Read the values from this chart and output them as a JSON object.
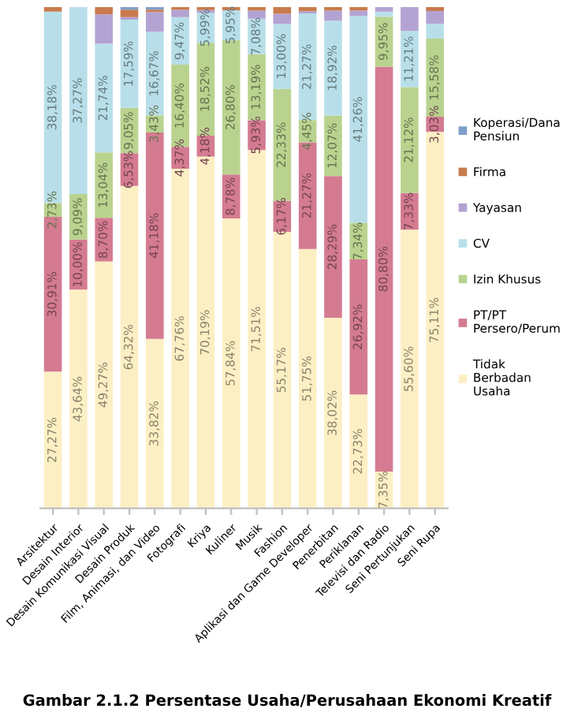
{
  "chart_data": {
    "type": "bar",
    "stacked": true,
    "legend": "right",
    "tick_labels": "x",
    "grid": false,
    "annotations": [
      "Gambar 2.1.2 Persentase Usaha/Perusahaan Ekonomi Kreatif"
    ],
    "categories": [
      "Arsitektur",
      "Desain Interior",
      "Desain Komunikasi Visual",
      "Desain Produk",
      "Film, Animasi, dan Video",
      "Fotografi",
      "Kriya",
      "Kuliner",
      "Musik",
      "Fashion",
      "Aplikasi dan Game Developer",
      "Penerbitan",
      "Periklanan",
      "Televisi dan Radio",
      "Seni Pertunjukan",
      "Seni Rupa"
    ],
    "ylim": [
      0,
      100
    ],
    "series": [
      {
        "name": "Tidak Berbadan Usaha",
        "color": "#fdefc4",
        "values": [
          27.27,
          43.64,
          49.27,
          64.32,
          33.82,
          67.76,
          70.19,
          57.84,
          71.51,
          55.17,
          51.75,
          38.02,
          22.73,
          7.35,
          55.6,
          75.11
        ],
        "value_labels": [
          "27,27%",
          "43,64%",
          "49,27%",
          "64,32%",
          "33,82%",
          "67,76%",
          "70,19%",
          "57,84%",
          "71,51%",
          "55,17%",
          "51,75%",
          "38,02%",
          "22,73%",
          "7,35%",
          "55,60%",
          "75,11%"
        ]
      },
      {
        "name": "PT/PT Persero/Perum",
        "color": "#d47b91",
        "values": [
          30.91,
          10.0,
          8.7,
          6.53,
          41.18,
          4.37,
          4.18,
          8.78,
          5.93,
          6.17,
          21.27,
          28.29,
          26.92,
          80.8,
          7.33,
          3.03
        ],
        "value_labels": [
          "30,91%",
          "10,00%",
          "8,70%",
          "6,53%",
          "41,18%",
          "4,37%",
          "4,18%",
          "8,78%",
          "5,93%",
          "6,17%",
          "21,27%",
          "28,29%",
          "26,92%",
          "80,80%",
          "7,33%",
          "3,03%"
        ]
      },
      {
        "name": "Izin Khusus",
        "color": "#b9d38f",
        "values": [
          2.73,
          9.09,
          13.04,
          9.05,
          3.43,
          16.4,
          18.52,
          26.8,
          13.19,
          22.33,
          4.45,
          12.07,
          7.34,
          9.95,
          21.12,
          15.58
        ],
        "value_labels": [
          "2,73%",
          "9,09%",
          "13,04%",
          "9,05%",
          "3,43%",
          "16,40%",
          "18,52%",
          "26,80%",
          "13,19%",
          "22,33%",
          "4,45%",
          "12,07%",
          "7,34%",
          "9,95%",
          "21,12%",
          "15,58%"
        ]
      },
      {
        "name": "CV",
        "color": "#b8dfe9",
        "values": [
          38.18,
          37.27,
          21.74,
          17.59,
          16.67,
          9.47,
          5.99,
          5.95,
          7.08,
          13.0,
          21.27,
          18.92,
          41.26,
          1.0,
          11.21,
          3.0
        ],
        "value_labels": [
          "38,18%",
          "37,27%",
          "21,74%",
          "17,59%",
          "16,67%",
          "9,47%",
          "5,99%",
          "5,95%",
          "7,08%",
          "13,00%",
          "21,27%",
          "18,92%",
          "41,26%",
          null,
          "11,21%",
          null
        ]
      },
      {
        "name": "Yayasan",
        "color": "#b3a3d3",
        "values": [
          0,
          0,
          5.8,
          0.5,
          3.92,
          1.46,
          0.56,
          0,
          1.6,
          2.0,
          0.46,
          2.0,
          1.05,
          0.9,
          4.74,
          2.5
        ]
      },
      {
        "name": "Firma",
        "color": "#c97b4e",
        "values": [
          0.91,
          0,
          1.45,
          1.51,
          0.49,
          0.54,
          0.56,
          0.63,
          0.69,
          1.33,
          0.8,
          0.7,
          0.7,
          0,
          0,
          0.78
        ]
      },
      {
        "name": "Koperasi/Dana Pensiun",
        "color": "#7f9fcb",
        "values": [
          0,
          0,
          0,
          0.5,
          0.49,
          0,
          0,
          0,
          0,
          0,
          0,
          0,
          0,
          0,
          0,
          0
        ]
      }
    ]
  }
}
